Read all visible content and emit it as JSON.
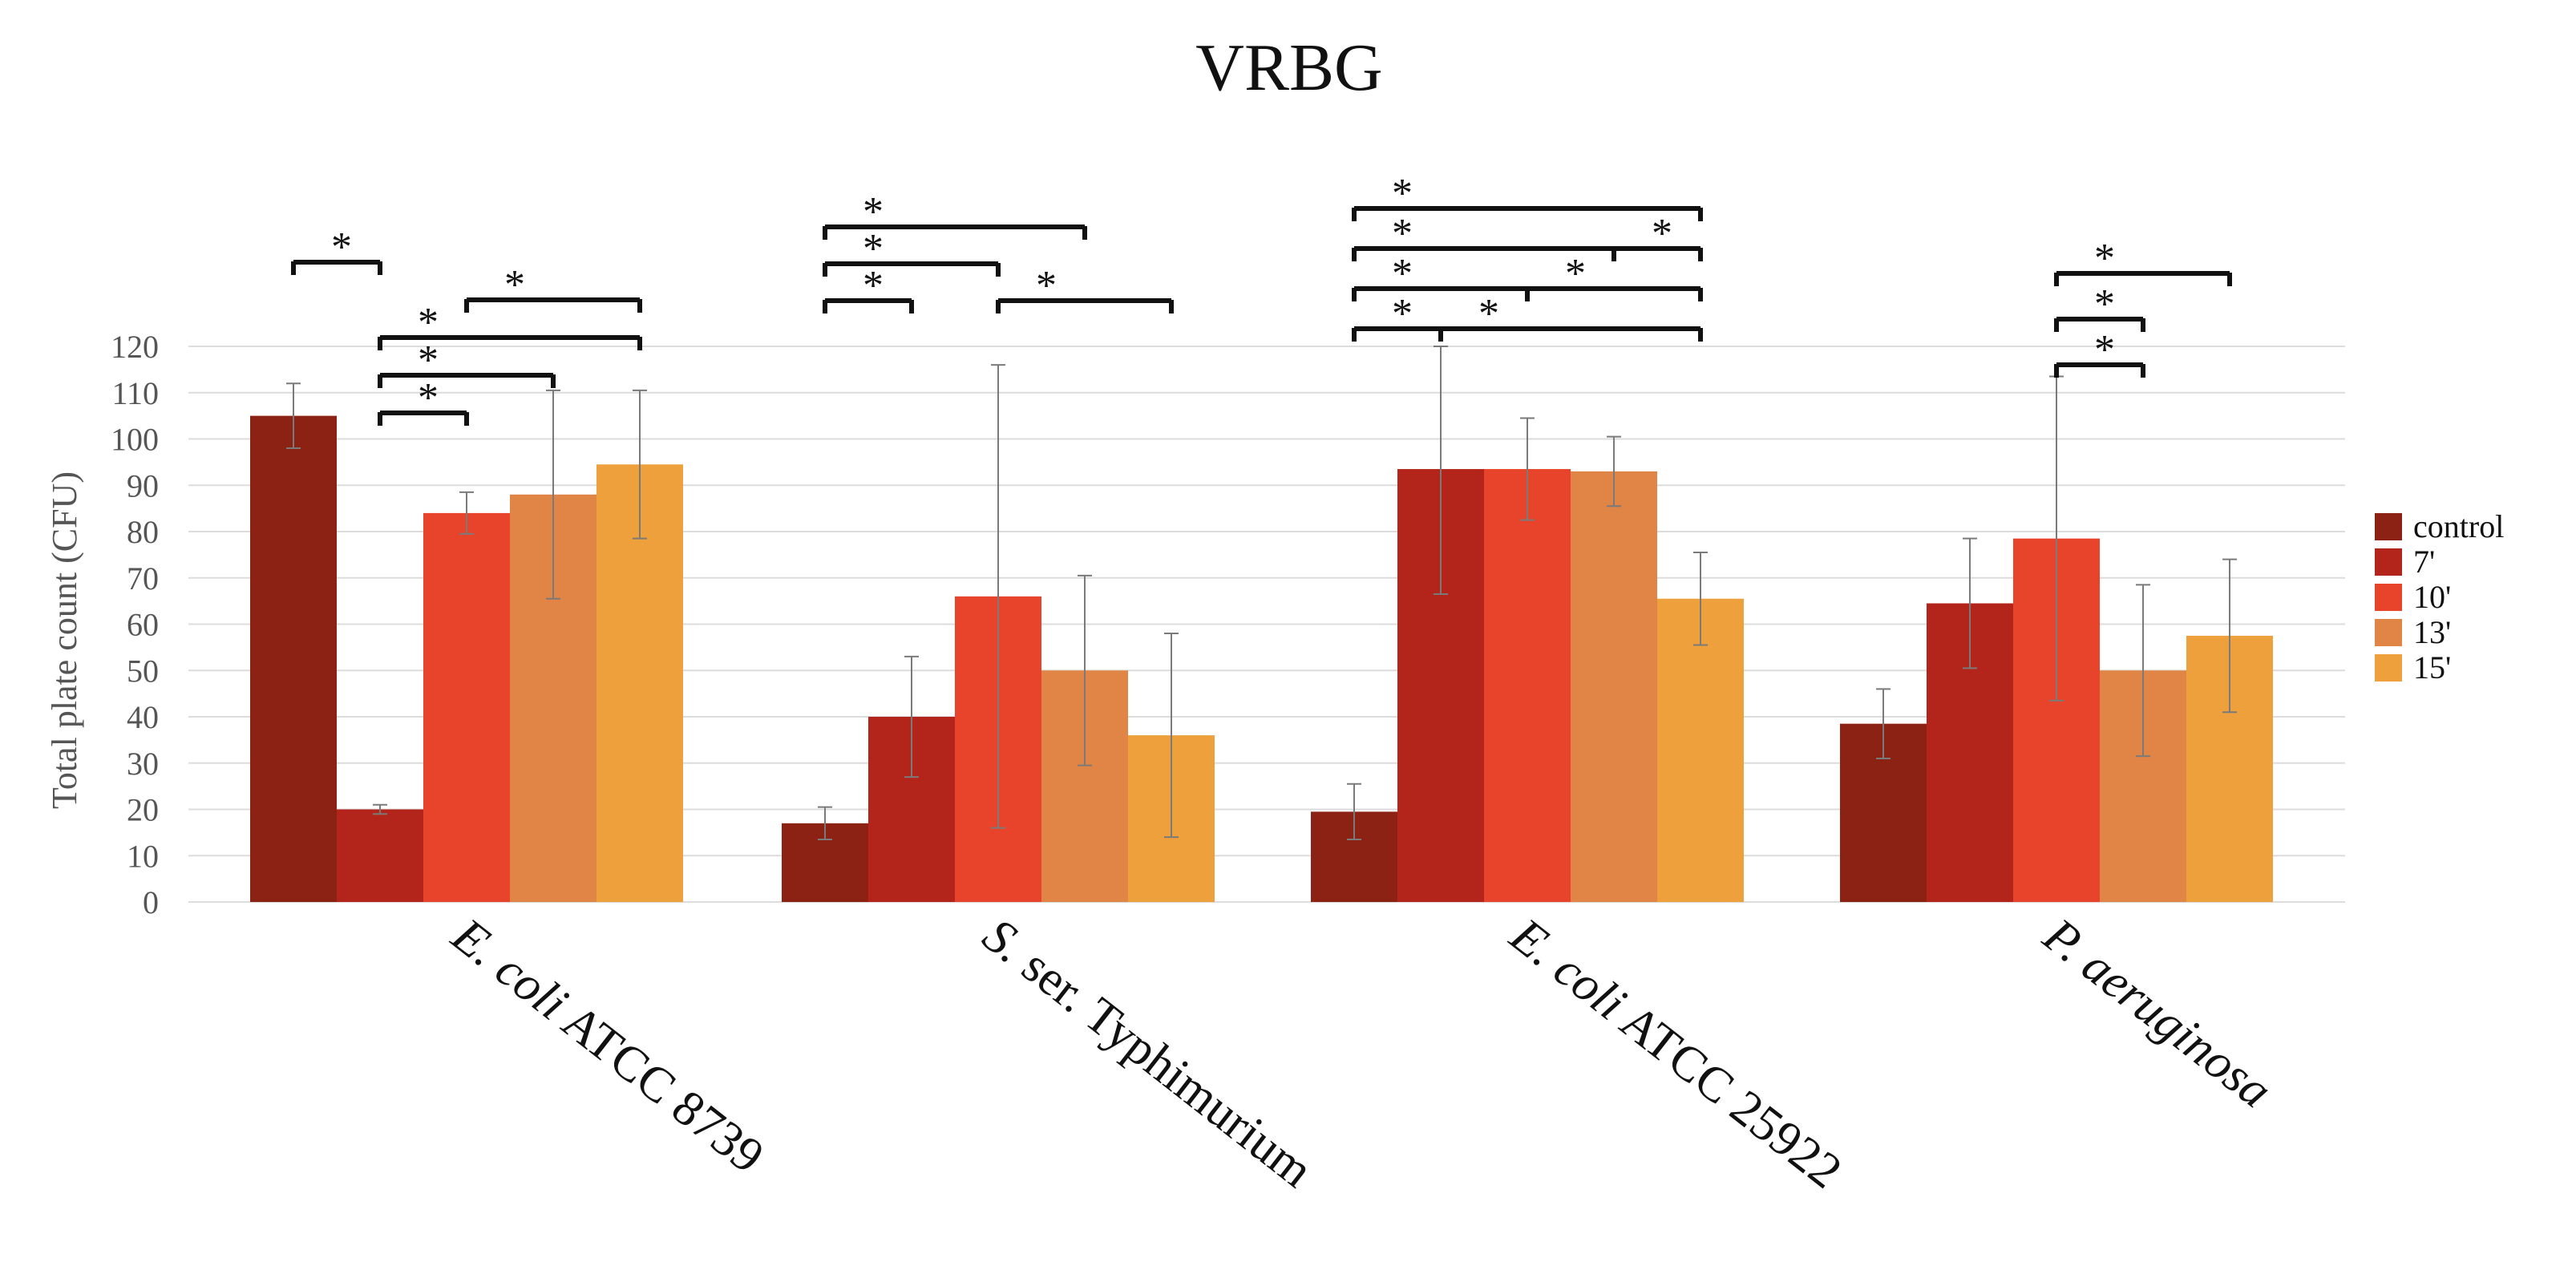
{
  "chart_data": {
    "type": "bar",
    "title": "VRBG",
    "xlabel": "",
    "ylabel": "Total plate count (CFU)",
    "ylim": [
      0,
      120
    ],
    "yticks": [
      0,
      10,
      20,
      30,
      40,
      50,
      60,
      70,
      80,
      90,
      100,
      110,
      120
    ],
    "grid": true,
    "legend_position": "right",
    "categories": [
      {
        "italic": "E. coli",
        "rest": " ATCC 8739"
      },
      {
        "italic": "S.",
        "rest": " ser. Typhimurium"
      },
      {
        "italic": "E. coli",
        "rest": " ATCC 25922"
      },
      {
        "italic": "P. aeruginosa",
        "rest": ""
      }
    ],
    "series": [
      {
        "name": "control",
        "color": "#8b2214",
        "values": [
          105,
          17,
          19.5,
          38.5
        ],
        "errors": [
          7,
          3.5,
          6,
          7.5
        ]
      },
      {
        "name": "7'",
        "color": "#b3241b",
        "values": [
          20,
          40,
          93.5,
          64.5
        ],
        "errors": [
          1,
          13,
          27,
          14
        ]
      },
      {
        "name": "10'",
        "color": "#e8432b",
        "values": [
          84,
          66,
          93.5,
          78.5
        ],
        "errors": [
          4.5,
          50,
          11,
          35
        ]
      },
      {
        "name": "13'",
        "color": "#e08545",
        "values": [
          88,
          50,
          93,
          50
        ],
        "errors": [
          22.5,
          20.5,
          7.5,
          18.5
        ]
      },
      {
        "name": "15'",
        "color": "#eda03c",
        "values": [
          94.5,
          36,
          65.5,
          57.5
        ],
        "errors": [
          16,
          22,
          10,
          16.5
        ]
      }
    ],
    "significance": {
      "marker": "*",
      "brackets": [
        {
          "group": 0,
          "from": 0,
          "to": 1,
          "level": 4
        },
        {
          "group": 0,
          "from": 1,
          "to": 2,
          "level": 0
        },
        {
          "group": 0,
          "from": 1,
          "to": 3,
          "level": 1
        },
        {
          "group": 0,
          "from": 1,
          "to": 4,
          "level": 2
        },
        {
          "group": 0,
          "from": 2,
          "to": 4,
          "level": 3
        },
        {
          "group": 1,
          "from": 0,
          "to": 1,
          "level": 0
        },
        {
          "group": 1,
          "from": 0,
          "to": 2,
          "level": 1
        },
        {
          "group": 1,
          "from": 0,
          "to": 3,
          "level": 2
        },
        {
          "group": 1,
          "from": 2,
          "to": 4,
          "level": 0
        },
        {
          "group": 2,
          "from": 0,
          "to": 1,
          "level": 0
        },
        {
          "group": 2,
          "from": 0,
          "to": 2,
          "level": 1
        },
        {
          "group": 2,
          "from": 0,
          "to": 3,
          "level": 2
        },
        {
          "group": 2,
          "from": 0,
          "to": 4,
          "level": 3
        },
        {
          "group": 2,
          "from": 1,
          "to": 4,
          "level": 0
        },
        {
          "group": 2,
          "from": 2,
          "to": 4,
          "level": 1
        },
        {
          "group": 2,
          "from": 3,
          "to": 4,
          "level": 2
        },
        {
          "group": 3,
          "from": 2,
          "to": 3,
          "level": 0
        },
        {
          "group": 3,
          "from": 2,
          "to": 3,
          "level": 1
        },
        {
          "group": 3,
          "from": 2,
          "to": 4,
          "level": 2
        }
      ]
    }
  }
}
